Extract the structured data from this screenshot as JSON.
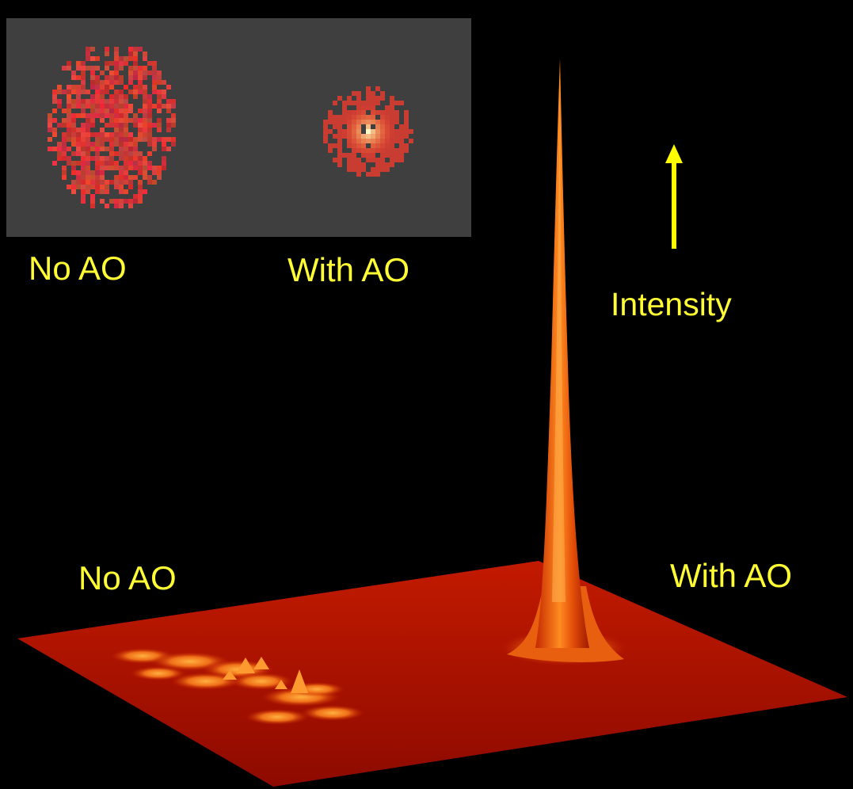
{
  "inset": {
    "label_no_ao": "No AO",
    "label_with_ao": "With AO",
    "background_color": "#3f3f3f"
  },
  "surface": {
    "label_no_ao": "No AO",
    "label_with_ao": "With AO",
    "axis_label": "Intensity",
    "surface_color": "#b01000",
    "highlight_color": "#ff8a1a"
  },
  "colors": {
    "label_text": "#ffff33",
    "arrow": "#ffff00",
    "background": "#000000"
  }
}
